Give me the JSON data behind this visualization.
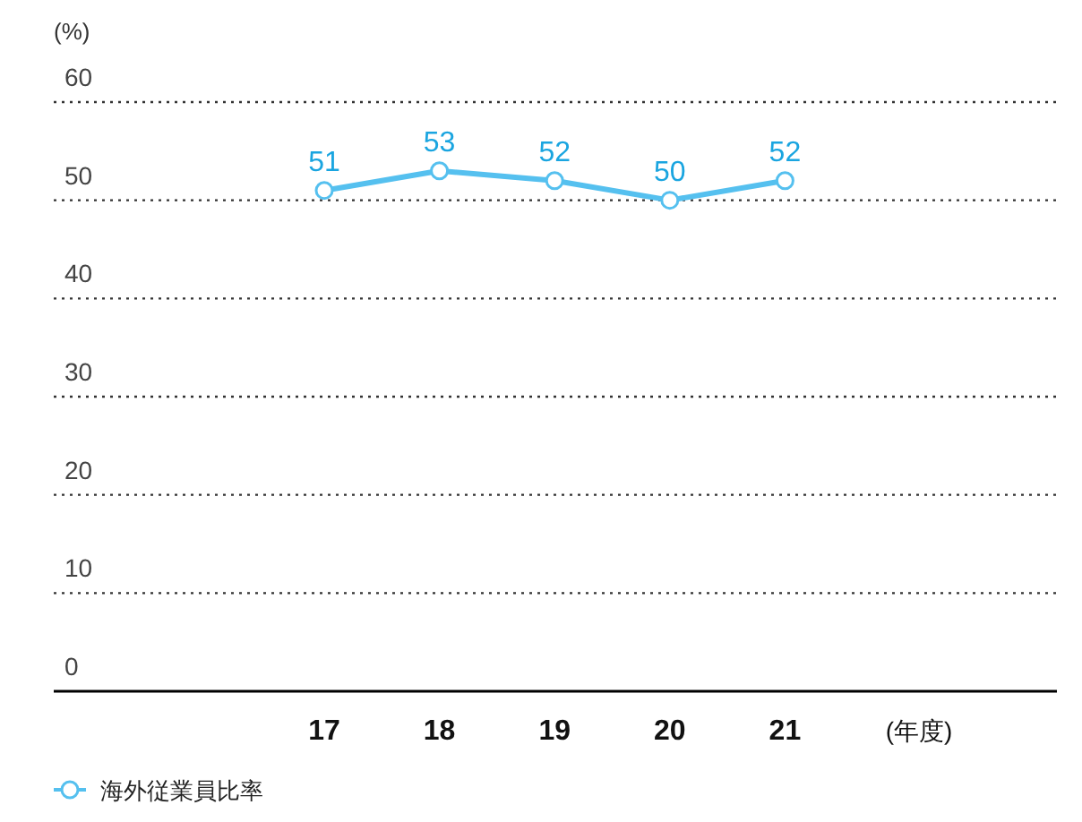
{
  "chart_data": {
    "type": "line",
    "ylabel": "(%)",
    "xlabel": "(年度)",
    "categories": [
      "17",
      "18",
      "19",
      "20",
      "21"
    ],
    "series": [
      {
        "name": "海外従業員比率",
        "color": "#55c0ef",
        "values": [
          51,
          53,
          52,
          50,
          52
        ]
      }
    ],
    "ylim": [
      0,
      60
    ],
    "yticks": [
      0,
      10,
      20,
      30,
      40,
      50,
      60
    ],
    "grid": "y",
    "legend": "bottom left",
    "marker": "circle",
    "line_style": "solid",
    "data_labels": true
  }
}
